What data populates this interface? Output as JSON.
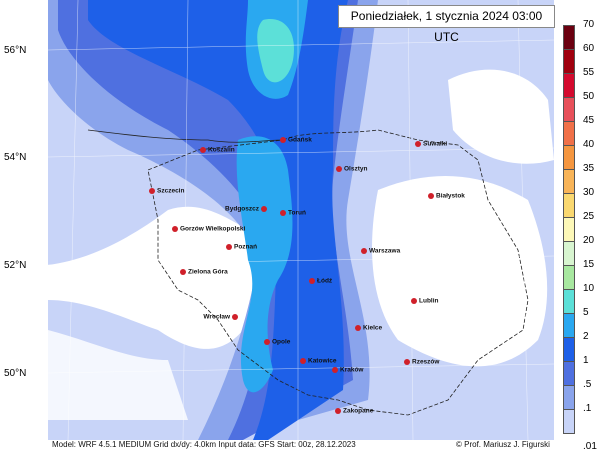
{
  "title": "Poniedziałek, 1 stycznia 2024 03:00 UTC",
  "footer": {
    "model_info": "Model: WRF 4.5.1 MEDIUM   Grid dx/dy: 4.0km   Input data: GFS   Start: 00z, 28.12.2023",
    "copyright": "© Prof. Mariusz J. Figurski"
  },
  "latitude_labels": [
    "56°N",
    "54°N",
    "52°N",
    "50°N"
  ],
  "colorbar": {
    "labels": [
      "70",
      "60",
      "55",
      "50",
      "45",
      "40",
      "35",
      "30",
      "25",
      "20",
      "15",
      "10",
      "5",
      "2",
      "1",
      ".5",
      ".1",
      ".01"
    ],
    "colors": [
      "#6b0010",
      "#a0000e",
      "#d40a2e",
      "#e8505a",
      "#f07048",
      "#f5963f",
      "#f8b458",
      "#fad870",
      "#fdf8b8",
      "#d8f5d0",
      "#a8e8a0",
      "#5ce0d8",
      "#2aa8f0",
      "#1e60e8",
      "#4f70e0",
      "#8aa4ec",
      "#c8d4f8"
    ]
  },
  "cities": [
    {
      "name": "Gdańsk"
    },
    {
      "name": "Koszalin"
    },
    {
      "name": "Suwałki"
    },
    {
      "name": "Olsztyn"
    },
    {
      "name": "Szczecin"
    },
    {
      "name": "Białystok"
    },
    {
      "name": "Bydgoszcz"
    },
    {
      "name": "Toruń"
    },
    {
      "name": "Gorzów Wielkopolski"
    },
    {
      "name": "Poznań"
    },
    {
      "name": "Warszawa"
    },
    {
      "name": "Zielona Góra"
    },
    {
      "name": "Łódź"
    },
    {
      "name": "Lublin"
    },
    {
      "name": "Wrocław"
    },
    {
      "name": "Kielce"
    },
    {
      "name": "Opole"
    },
    {
      "name": "Katowice"
    },
    {
      "name": "Rzeszów"
    },
    {
      "name": "Kraków"
    },
    {
      "name": "Zakopane"
    }
  ],
  "map_colors": {
    "land": "#ffffff",
    "light": "#c8d4f8",
    "p1": "#8aa4ec",
    "p5": "#4f70e0",
    "p10": "#1e60e8",
    "p20": "#2aa8f0",
    "p50": "#5ce0d8"
  }
}
